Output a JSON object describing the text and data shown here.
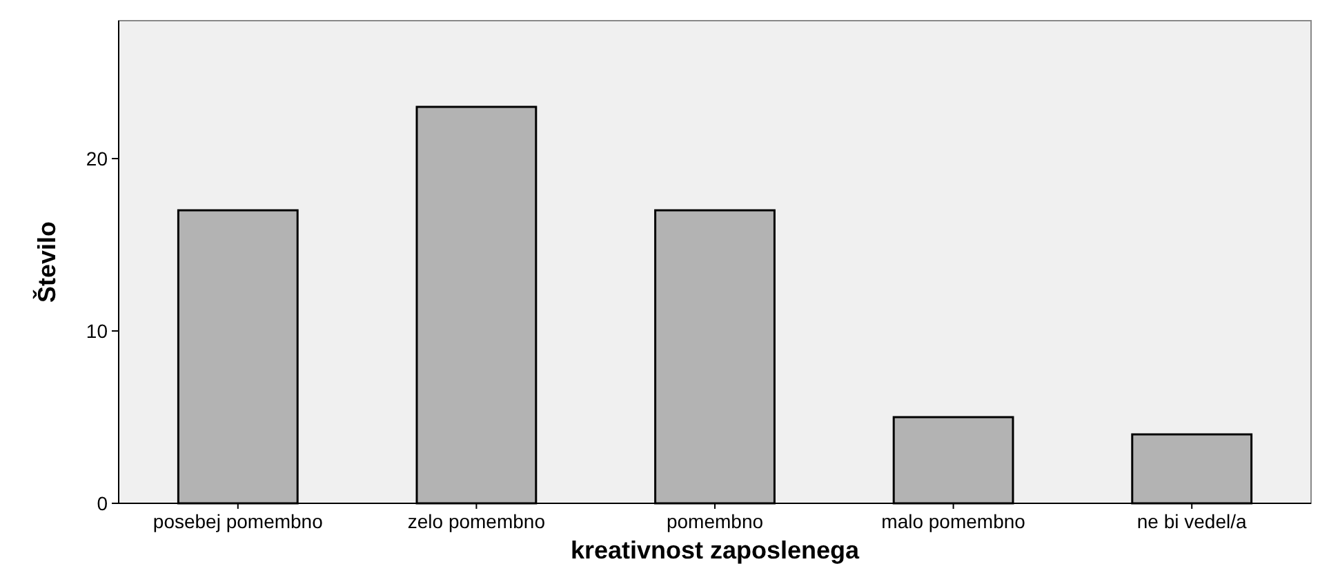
{
  "chart_data": {
    "type": "bar",
    "xlabel": "kreativnost zaposlenega",
    "ylabel": "Število",
    "categories": [
      "posebej pomembno",
      "zelo pomembno",
      "pomembno",
      "malo pomembno",
      "ne bi vedel/a"
    ],
    "values": [
      17,
      23,
      17,
      5,
      4
    ],
    "color": "#b3b3b3",
    "ylim": [
      0,
      28
    ],
    "yticks": [
      0,
      10,
      20
    ],
    "grid": false
  }
}
